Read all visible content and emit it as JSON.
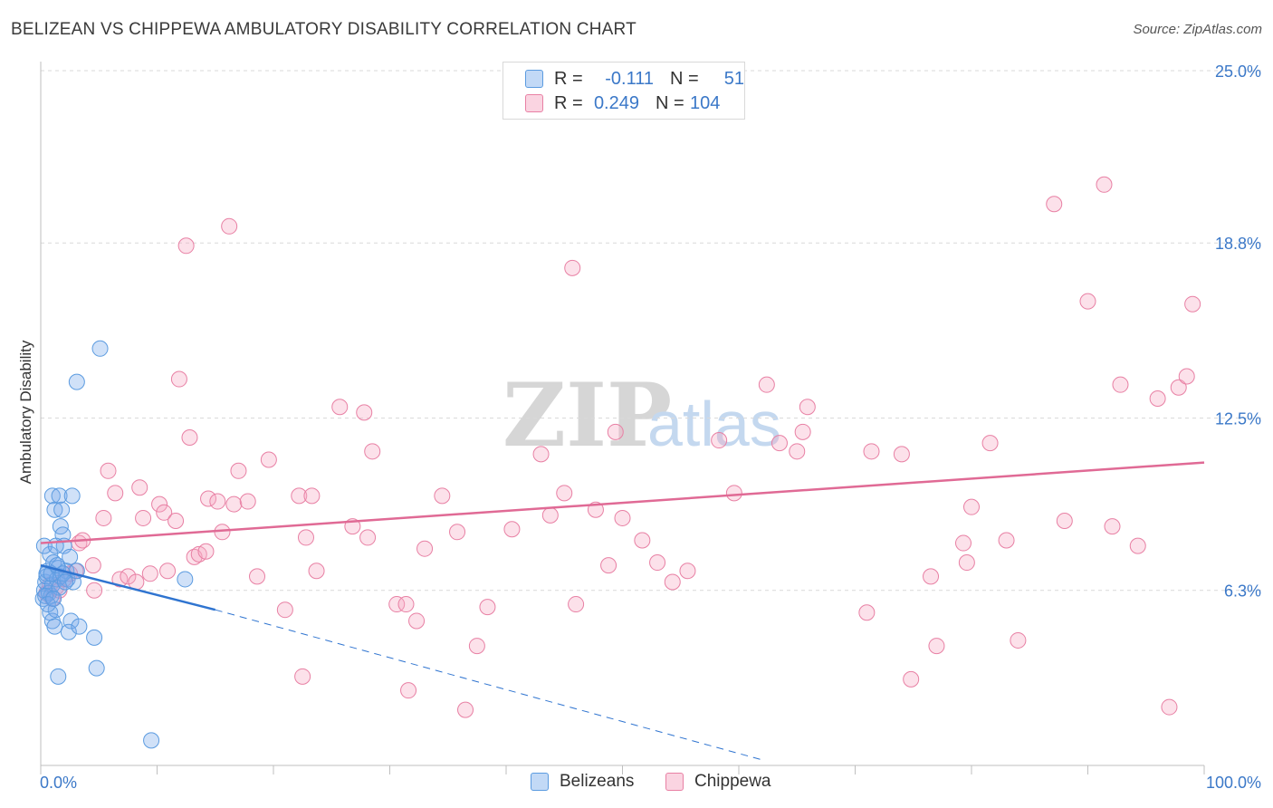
{
  "title": "BELIZEAN VS CHIPPEWA AMBULATORY DISABILITY CORRELATION CHART",
  "source": "Source: ZipAtlas.com",
  "watermark": {
    "zip": "ZIP",
    "atlas": "atlas"
  },
  "colors": {
    "blue": "#5b9be0",
    "blue_fill": "rgba(120,170,235,0.35)",
    "blue_line": "#2f74d0",
    "pink": "#e880a4",
    "pink_fill": "rgba(245,170,195,0.35)",
    "pink_line": "#e06a95",
    "axis_text": "#3b78c8",
    "grid": "#d9d9d9"
  },
  "legend": {
    "rows": [
      {
        "r_label": "R =",
        "r_value": "-0.111",
        "n_label": "N =",
        "n_value": "51"
      },
      {
        "r_label": "R =",
        "r_value": "0.249",
        "n_label": "N =",
        "n_value": "104"
      }
    ]
  },
  "bottom_legend": {
    "series1": "Belizeans",
    "series2": "Chippewa"
  },
  "chart_data": {
    "type": "scatter",
    "ylabel": "Ambulatory Disability",
    "xlabel": "",
    "xlim": [
      0,
      100
    ],
    "ylim": [
      0,
      25
    ],
    "x_tick_labels": [
      "0.0%",
      "100.0%"
    ],
    "y_ticks": [
      6.3,
      12.5,
      18.8,
      25.0
    ],
    "y_tick_labels": [
      "6.3%",
      "12.5%",
      "18.8%",
      "25.0%"
    ],
    "grid": "horizontal dashed",
    "series": [
      {
        "name": "Belizeans",
        "r": -0.111,
        "n": 51,
        "trend": {
          "x0": 0,
          "y0": 7.2,
          "x1": 15,
          "y1": 5.6,
          "dash_to_x": 62,
          "dash_to_y": 0.2
        },
        "points": [
          [
            0.2,
            6.0
          ],
          [
            0.3,
            6.3
          ],
          [
            0.4,
            6.6
          ],
          [
            0.5,
            6.8
          ],
          [
            0.6,
            7.0
          ],
          [
            0.7,
            6.2
          ],
          [
            0.8,
            7.6
          ],
          [
            0.9,
            6.1
          ],
          [
            1.0,
            6.5
          ],
          [
            1.1,
            7.3
          ],
          [
            0.3,
            7.9
          ],
          [
            0.5,
            6.9
          ],
          [
            0.8,
            5.5
          ],
          [
            1.0,
            5.2
          ],
          [
            1.2,
            5.0
          ],
          [
            1.3,
            5.6
          ],
          [
            1.4,
            6.7
          ],
          [
            1.5,
            7.1
          ],
          [
            1.6,
            6.4
          ],
          [
            1.7,
            6.8
          ],
          [
            1.0,
            9.7
          ],
          [
            1.2,
            9.2
          ],
          [
            1.6,
            9.7
          ],
          [
            1.7,
            8.6
          ],
          [
            1.8,
            9.2
          ],
          [
            1.9,
            8.3
          ],
          [
            2.0,
            7.9
          ],
          [
            2.2,
            7.0
          ],
          [
            2.3,
            6.7
          ],
          [
            2.5,
            7.5
          ],
          [
            2.6,
            5.2
          ],
          [
            2.4,
            4.8
          ],
          [
            2.7,
            9.7
          ],
          [
            2.8,
            6.6
          ],
          [
            3.1,
            7.0
          ],
          [
            3.3,
            5.0
          ],
          [
            4.6,
            4.6
          ],
          [
            4.8,
            3.5
          ],
          [
            5.1,
            15.0
          ],
          [
            3.1,
            13.8
          ],
          [
            1.5,
            3.2
          ],
          [
            9.5,
            0.9
          ],
          [
            12.4,
            6.7
          ],
          [
            0.4,
            6.1
          ],
          [
            0.6,
            5.8
          ],
          [
            0.9,
            6.9
          ],
          [
            1.3,
            7.9
          ],
          [
            1.4,
            7.2
          ],
          [
            1.9,
            6.9
          ],
          [
            2.1,
            6.6
          ],
          [
            1.1,
            6.0
          ]
        ]
      },
      {
        "name": "Chippewa",
        "r": 0.249,
        "n": 104,
        "trend": {
          "x0": 0,
          "y0": 8.0,
          "x1": 100,
          "y1": 10.9
        },
        "points": [
          [
            0.5,
            6.2
          ],
          [
            0.8,
            6.5
          ],
          [
            1.0,
            6.0
          ],
          [
            1.3,
            6.4
          ],
          [
            1.6,
            6.3
          ],
          [
            2.0,
            6.7
          ],
          [
            2.5,
            6.9
          ],
          [
            3.0,
            7.0
          ],
          [
            3.3,
            8.0
          ],
          [
            3.6,
            8.1
          ],
          [
            4.6,
            6.3
          ],
          [
            4.5,
            7.2
          ],
          [
            5.4,
            8.9
          ],
          [
            5.8,
            10.6
          ],
          [
            6.4,
            9.8
          ],
          [
            6.8,
            6.7
          ],
          [
            7.5,
            6.8
          ],
          [
            8.2,
            6.6
          ],
          [
            8.5,
            10.0
          ],
          [
            8.8,
            8.9
          ],
          [
            9.4,
            6.9
          ],
          [
            10.2,
            9.4
          ],
          [
            10.6,
            9.1
          ],
          [
            10.9,
            7.0
          ],
          [
            11.6,
            8.8
          ],
          [
            11.9,
            13.9
          ],
          [
            12.5,
            18.7
          ],
          [
            12.8,
            11.8
          ],
          [
            13.2,
            7.5
          ],
          [
            13.6,
            7.6
          ],
          [
            14.2,
            7.7
          ],
          [
            14.4,
            9.6
          ],
          [
            15.2,
            9.5
          ],
          [
            15.6,
            8.4
          ],
          [
            16.2,
            19.4
          ],
          [
            16.6,
            9.4
          ],
          [
            17.0,
            10.6
          ],
          [
            17.8,
            9.5
          ],
          [
            18.6,
            6.8
          ],
          [
            19.6,
            11.0
          ],
          [
            21.0,
            5.6
          ],
          [
            22.5,
            3.2
          ],
          [
            22.8,
            8.2
          ],
          [
            22.2,
            9.7
          ],
          [
            23.3,
            9.7
          ],
          [
            23.7,
            7.0
          ],
          [
            25.7,
            12.9
          ],
          [
            26.8,
            8.6
          ],
          [
            27.8,
            12.7
          ],
          [
            28.1,
            8.2
          ],
          [
            28.5,
            11.3
          ],
          [
            30.6,
            5.8
          ],
          [
            31.4,
            5.8
          ],
          [
            31.6,
            2.7
          ],
          [
            32.3,
            5.2
          ],
          [
            33.0,
            7.8
          ],
          [
            34.5,
            9.7
          ],
          [
            35.8,
            8.4
          ],
          [
            36.5,
            2.0
          ],
          [
            37.5,
            4.3
          ],
          [
            38.4,
            5.7
          ],
          [
            40.5,
            8.5
          ],
          [
            43.0,
            11.2
          ],
          [
            43.8,
            9.0
          ],
          [
            45.0,
            9.8
          ],
          [
            45.7,
            17.9
          ],
          [
            46.0,
            5.8
          ],
          [
            47.7,
            9.2
          ],
          [
            48.8,
            7.2
          ],
          [
            49.4,
            12.0
          ],
          [
            50.0,
            8.9
          ],
          [
            51.7,
            8.1
          ],
          [
            53.0,
            7.3
          ],
          [
            54.3,
            6.6
          ],
          [
            55.6,
            7.0
          ],
          [
            58.3,
            11.7
          ],
          [
            59.6,
            9.8
          ],
          [
            62.4,
            13.7
          ],
          [
            63.5,
            11.6
          ],
          [
            65.0,
            11.3
          ],
          [
            65.5,
            12.0
          ],
          [
            65.9,
            12.9
          ],
          [
            71.0,
            5.5
          ],
          [
            71.4,
            11.3
          ],
          [
            74.0,
            11.2
          ],
          [
            74.8,
            3.1
          ],
          [
            76.5,
            6.8
          ],
          [
            77.0,
            4.3
          ],
          [
            79.3,
            8.0
          ],
          [
            79.6,
            7.3
          ],
          [
            80.0,
            9.3
          ],
          [
            81.6,
            11.6
          ],
          [
            83.0,
            8.1
          ],
          [
            84.0,
            4.5
          ],
          [
            87.1,
            20.2
          ],
          [
            88.0,
            8.8
          ],
          [
            90.0,
            16.7
          ],
          [
            91.4,
            20.9
          ],
          [
            92.1,
            8.6
          ],
          [
            92.8,
            13.7
          ],
          [
            94.3,
            7.9
          ],
          [
            96.0,
            13.2
          ],
          [
            97.0,
            2.1
          ],
          [
            97.8,
            13.6
          ]
        ]
      }
    ],
    "extra_points_series2": [
      [
        98.5,
        14.0
      ],
      [
        99.0,
        16.6
      ]
    ]
  }
}
